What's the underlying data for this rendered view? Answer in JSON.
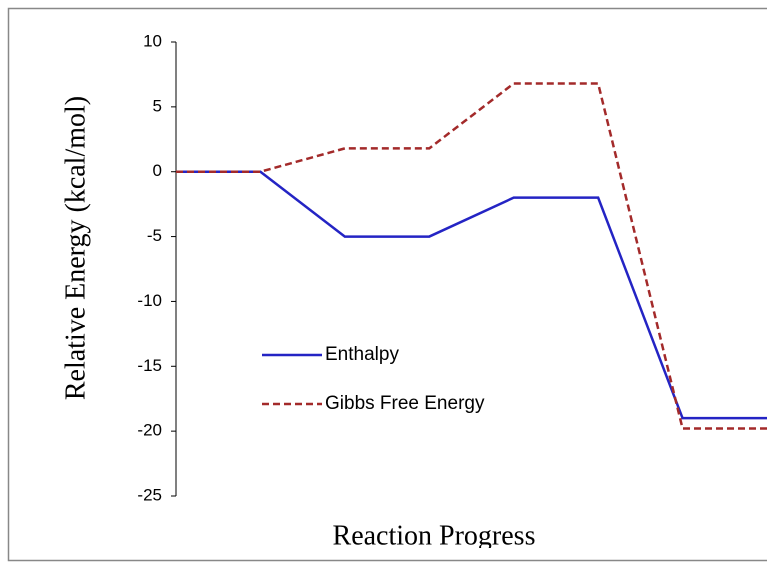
{
  "chart_data": {
    "type": "line",
    "x_label": "Reaction Progress",
    "y_label": "Relative Energy  (kcal/mol)",
    "categories": [
      null,
      null,
      null,
      null,
      null,
      null,
      null,
      null
    ],
    "series": [
      {
        "name": "Enthalpy",
        "color": "#2424c4",
        "dash": "solid",
        "values": [
          0,
          0,
          -5,
          -5,
          -2,
          -2,
          -19,
          -19
        ]
      },
      {
        "name": "Gibbs Free Energy",
        "color": "#a32a2a",
        "dash": "dashed",
        "values": [
          0,
          0,
          1.8,
          1.8,
          6.8,
          6.8,
          -19.8,
          -19.8
        ]
      }
    ],
    "ylim": [
      -25,
      10
    ],
    "yticks": [
      -25,
      -20,
      -15,
      -10,
      -5,
      0,
      5,
      10
    ],
    "grid": false,
    "legend": "lower left"
  }
}
